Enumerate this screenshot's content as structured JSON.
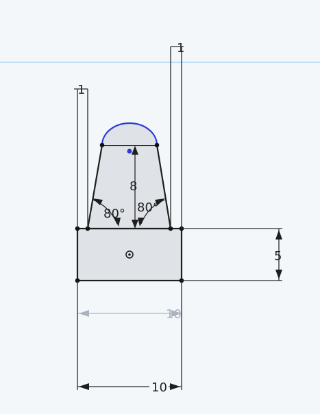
{
  "sketch": {
    "colors": {
      "background": "#f4f7fa",
      "axis": "#9fd0f5",
      "geometry": "#1e1e1e",
      "fill": "#dfe2e6",
      "arc": "#2a3bd6",
      "faded_dimension": "#a9b4bf"
    },
    "dimensions": {
      "left_offset": "1",
      "right_offset": "1",
      "height_trapezoid": "8",
      "angle_left": "80°",
      "angle_right": "80°",
      "height_rect": "5",
      "width_overall": "10",
      "width_faded": "10"
    },
    "icons": {
      "origin": "origin-point-icon"
    }
  }
}
